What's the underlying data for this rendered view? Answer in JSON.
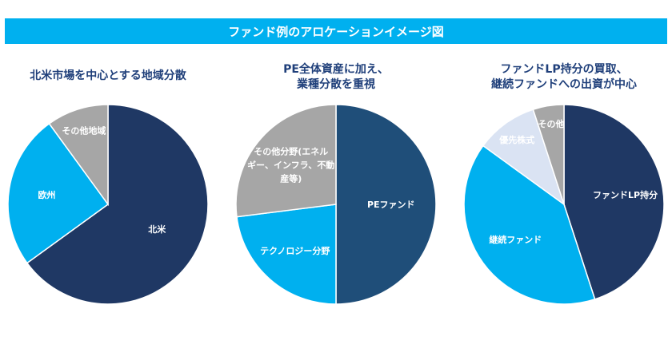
{
  "banner": {
    "title": "ファンド例のアロケーションイメージ図",
    "color": "#00b0ef"
  },
  "chart_data": [
    {
      "type": "pie",
      "title": "北米市場を中心とする地域分散",
      "title_lines": [
        "北米市場を中心とする地域分散"
      ],
      "slices": [
        {
          "label": "北米",
          "value": 65,
          "color": "#1f3864",
          "label_lines": [
            "北米"
          ],
          "text_color": "#ffffff"
        },
        {
          "label": "欧州",
          "value": 25,
          "color": "#00b0ef",
          "label_lines": [
            "欧州"
          ],
          "text_color": "#ffffff"
        },
        {
          "label": "その他地域",
          "value": 10,
          "color": "#a6a6a6",
          "label_lines": [
            "その他地域"
          ],
          "text_color": "#ffffff"
        }
      ]
    },
    {
      "type": "pie",
      "title": "PE全体資産に加え、業種分散を重視",
      "title_lines": [
        "PE全体資産に加え、",
        "業種分散を重視"
      ],
      "slices": [
        {
          "label": "PEファンド",
          "value": 50,
          "color": "#1f4e79",
          "label_lines": [
            "PEファンド"
          ],
          "text_color": "#ffffff"
        },
        {
          "label": "テクノロジー分野",
          "value": 23,
          "color": "#00b0ef",
          "label_lines": [
            "テクノロジー分野"
          ],
          "text_color": "#ffffff"
        },
        {
          "label": "その他分野(エネルギー、インフラ、不動産等)",
          "value": 27,
          "color": "#a6a6a6",
          "label_lines": [
            "その他分野(エネル",
            "ギー、インフラ、不動",
            "産等)"
          ],
          "text_color": "#ffffff"
        }
      ]
    },
    {
      "type": "pie",
      "title": "ファンドLP持分の買取、継続ファンドへの出資が中心",
      "title_lines": [
        "ファンドLP持分の買取、",
        "継続ファンドへの出資が中心"
      ],
      "slices": [
        {
          "label": "ファンドLP持分",
          "value": 45,
          "color": "#1f3864",
          "label_lines": [
            "ファンドLP持分"
          ],
          "text_color": "#ffffff"
        },
        {
          "label": "継続ファンド",
          "value": 40,
          "color": "#00b0ef",
          "label_lines": [
            "継続ファンド"
          ],
          "text_color": "#ffffff"
        },
        {
          "label": "優先株式",
          "value": 10,
          "color": "#dae3f3",
          "label_lines": [
            "優先株式"
          ],
          "text_color": "#595959"
        },
        {
          "label": "その他",
          "value": 5,
          "color": "#a6a6a6",
          "label_lines": [
            "その他"
          ],
          "text_color": "#ffffff"
        }
      ]
    }
  ]
}
